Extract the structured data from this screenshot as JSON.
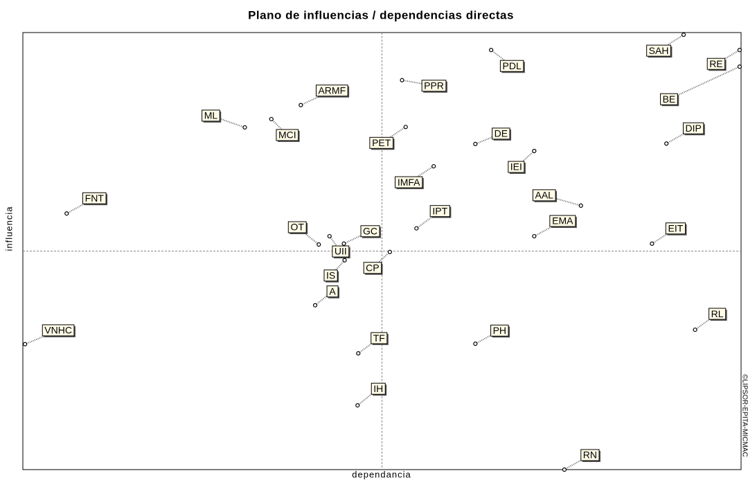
{
  "chart_data": {
    "type": "scatter",
    "title": "Plano de influencias / dependencias directas",
    "x_label": "dependancia",
    "y_label": "influencia",
    "watermark": "©LIPSOR-EPITA-MICMAC",
    "xlim": [
      0,
      100
    ],
    "ylim": [
      0,
      100
    ],
    "color": "#000000",
    "labels": [
      "SAH",
      "RE",
      "BE",
      "PDL",
      "PPR",
      "ARMF",
      "ML",
      "MCI",
      "PET",
      "DE",
      "DIP",
      "IEI",
      "IMFA",
      "FNT",
      "AAL",
      "IPT",
      "EMA",
      "EIT",
      "OT",
      "GC",
      "UII",
      "CP",
      "IS",
      "A",
      "RL",
      "VNHC",
      "PH",
      "TF",
      "IH",
      "RN"
    ],
    "x": [
      92.0,
      99.8,
      99.8,
      65.2,
      52.8,
      38.7,
      30.9,
      34.6,
      53.3,
      63.0,
      89.6,
      71.2,
      57.2,
      6.1,
      77.7,
      54.8,
      71.2,
      87.6,
      41.2,
      44.7,
      42.7,
      51.1,
      44.8,
      40.7,
      93.6,
      0.3,
      63.0,
      46.7,
      46.6,
      75.4
    ],
    "values": [
      99.5,
      96.0,
      92.2,
      96.0,
      89.1,
      83.4,
      78.3,
      80.2,
      78.4,
      74.5,
      74.6,
      72.9,
      69.4,
      58.6,
      60.4,
      55.2,
      53.4,
      51.7,
      51.5,
      51.7,
      53.4,
      49.8,
      47.9,
      37.6,
      32.0,
      28.7,
      28.8,
      26.6,
      14.7,
      0
    ]
  }
}
